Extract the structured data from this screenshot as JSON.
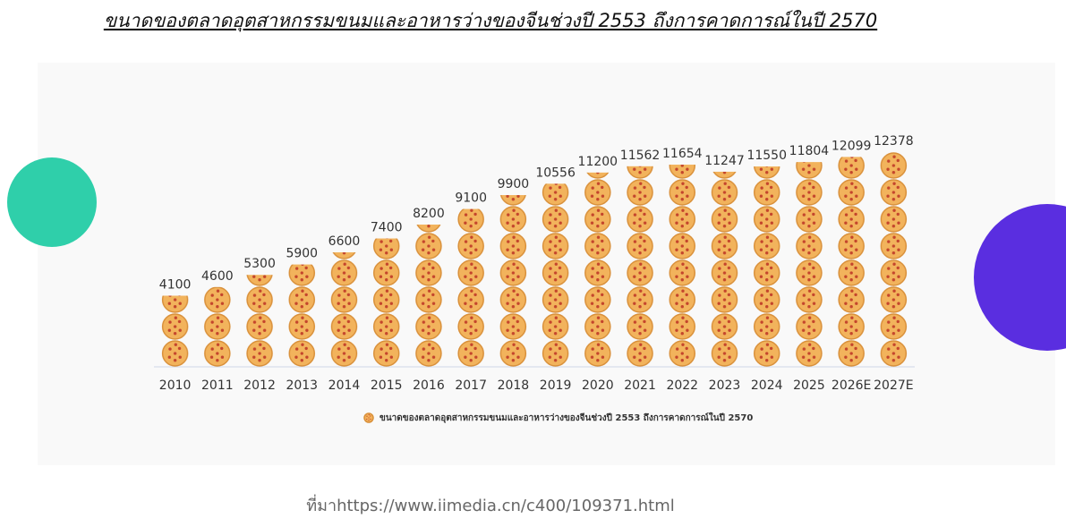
{
  "chart_data": {
    "type": "pictorial-bar",
    "title": "ขนาดของตลาดอุตสาหกรรมขนมและอาหารว่างของจีนช่วงปี 2553 ถึงการคาดการณ์ในปี 2570",
    "categories": [
      "2010",
      "2011",
      "2012",
      "2013",
      "2014",
      "2015",
      "2016",
      "2017",
      "2018",
      "2019",
      "2020",
      "2021",
      "2022",
      "2023",
      "2024",
      "2025",
      "2026E",
      "2027E"
    ],
    "series": [
      {
        "name": "ขนาดของตลาดอุตสาหกรรมขนมและอาหารว่างของจีนช่วงปี 2553 ถึงการคาดการณ์ในปี 2570",
        "color": "#f2b35c",
        "values": [
          4100,
          4600,
          5300,
          5900,
          6600,
          7400,
          8200,
          9100,
          9900,
          10556,
          11200,
          11562,
          11654,
          11247,
          11550,
          11804,
          12099,
          12378
        ]
      }
    ],
    "source": "ที่มาhttps://www.iimedia.cn/c400/109371.html"
  }
}
